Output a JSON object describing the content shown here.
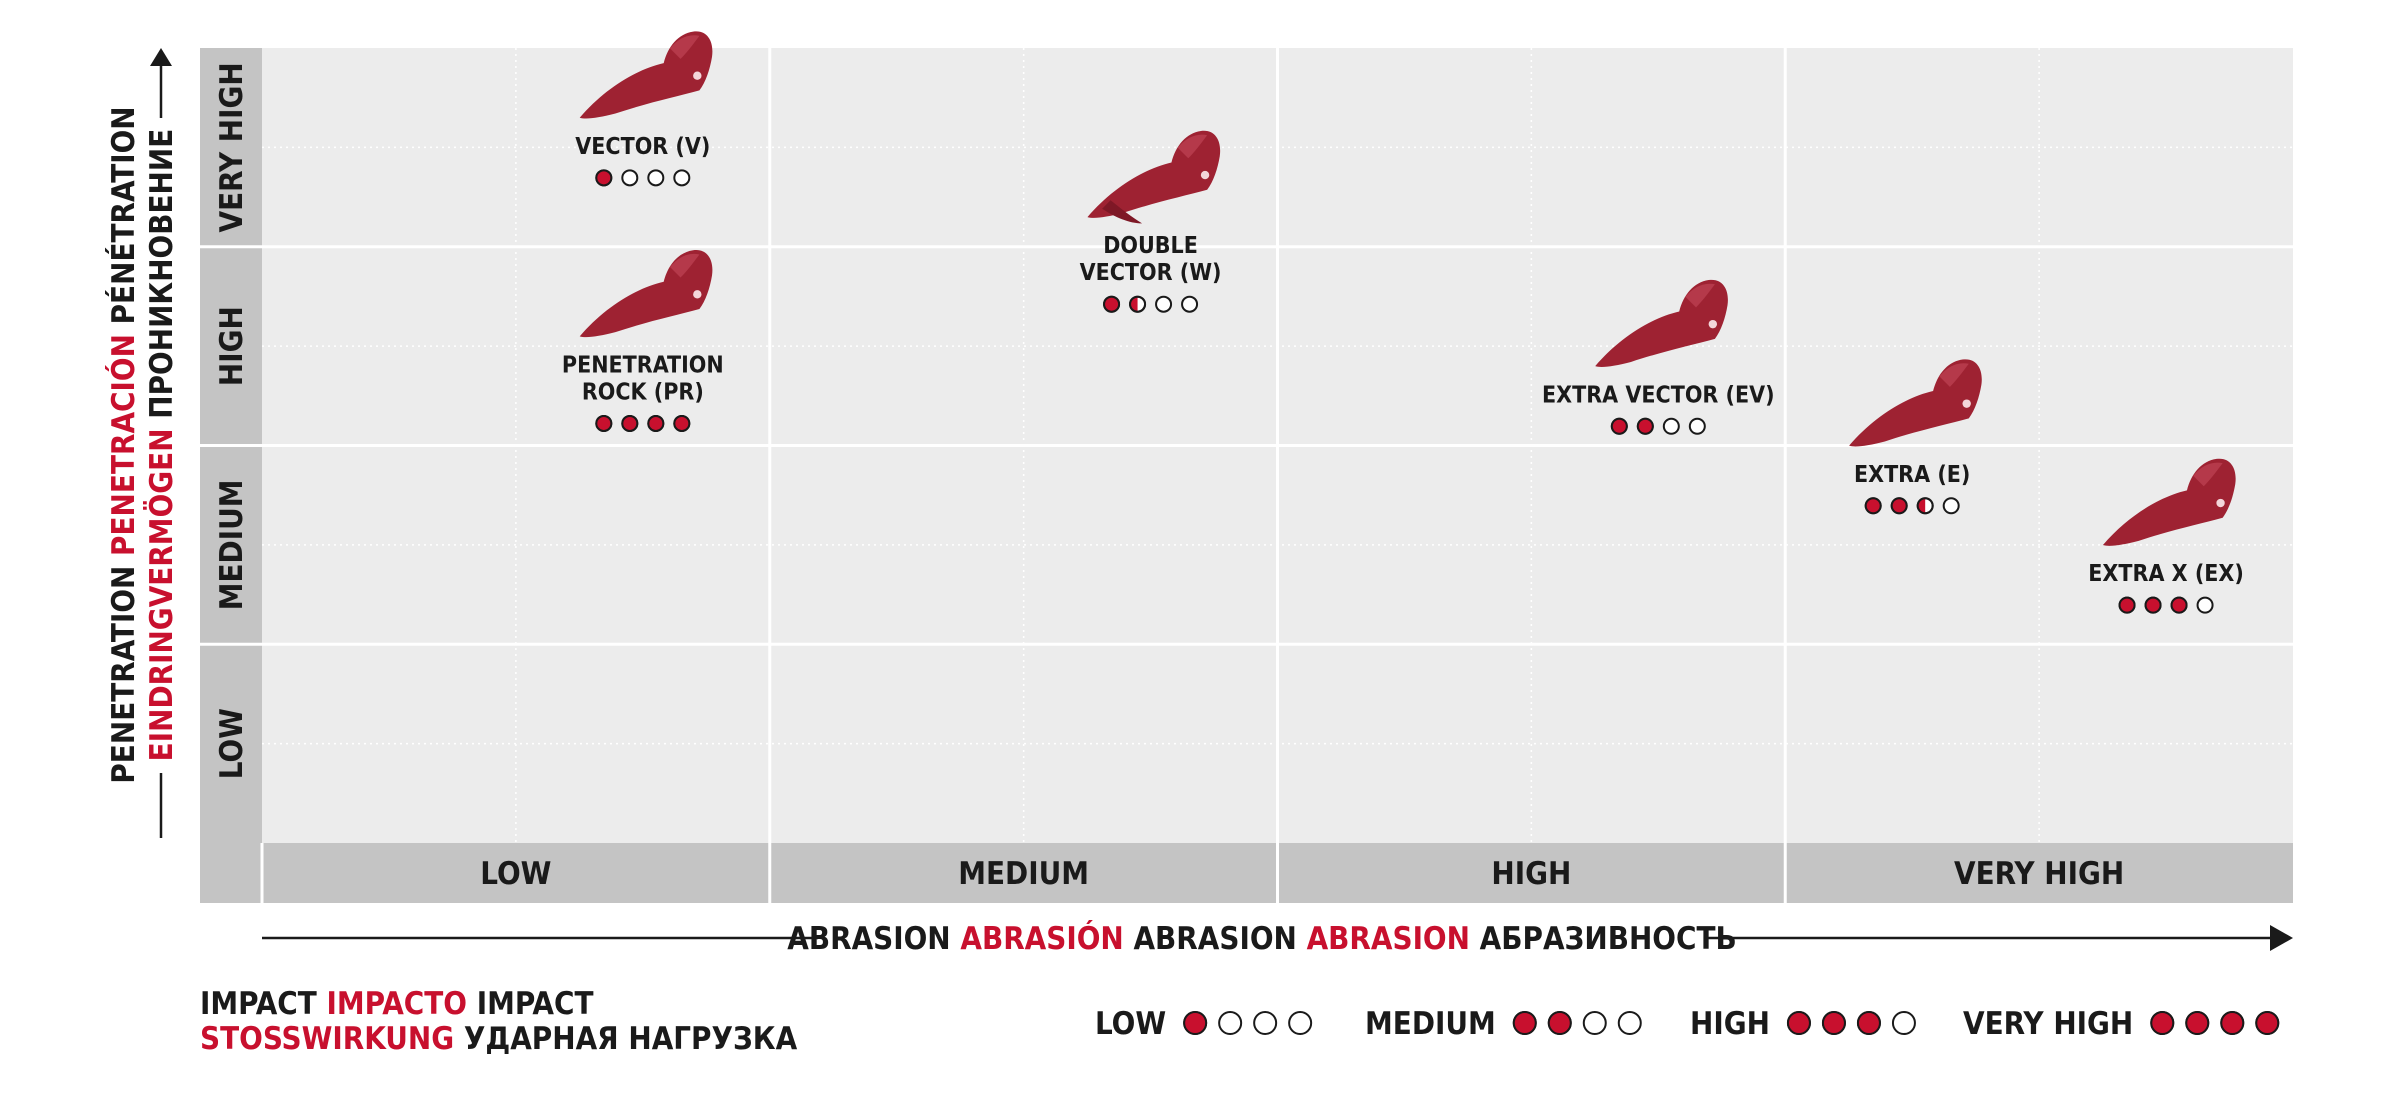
{
  "chart_data": {
    "type": "scatter",
    "y_axis": {
      "title_words": [
        {
          "text": "PENETRATION",
          "color": "black"
        },
        {
          "text": "PENETRACIÓN",
          "color": "red"
        },
        {
          "text": "PÉNÉTRATION",
          "color": "black"
        }
      ],
      "title_words_line2": [
        {
          "text": "EINDRINGVERMÖGEN",
          "color": "red"
        },
        {
          "text": "ПРОНИКНОВЕНИЕ",
          "color": "black"
        }
      ],
      "categories": [
        "LOW",
        "MEDIUM",
        "HIGH",
        "VERY HIGH"
      ]
    },
    "x_axis": {
      "title_words": [
        {
          "text": "ABRASION",
          "color": "black"
        },
        {
          "text": "ABRASIÓN",
          "color": "red"
        },
        {
          "text": "ABRASION",
          "color": "black"
        },
        {
          "text": "ABRASION",
          "color": "red"
        },
        {
          "text": "АБРАЗИВНОСТЬ",
          "color": "black"
        }
      ],
      "categories": [
        "LOW",
        "MEDIUM",
        "HIGH",
        "VERY HIGH"
      ]
    },
    "points": [
      {
        "label": "VECTOR (V)",
        "x": 0.75,
        "y": 3.85,
        "impact": 1
      },
      {
        "label": "PENETRATION ROCK (PR)",
        "x": 0.75,
        "y": 2.75,
        "impact": 4
      },
      {
        "label": "DOUBLE VECTOR (W)",
        "x": 1.75,
        "y": 3.35,
        "impact": 1.5
      },
      {
        "label": "EXTRA VECTOR (EV)",
        "x": 2.75,
        "y": 2.6,
        "impact": 2
      },
      {
        "label": "EXTRA (E)",
        "x": 3.25,
        "y": 2.2,
        "impact": 2.5
      },
      {
        "label": "EXTRA X (EX)",
        "x": 3.75,
        "y": 1.7,
        "impact": 3
      }
    ],
    "impact_legend": {
      "title_words": [
        {
          "text": "IMPACT",
          "color": "black"
        },
        {
          "text": "IMPACTO",
          "color": "red"
        },
        {
          "text": "IMPACT",
          "color": "black"
        }
      ],
      "title_words_line2": [
        {
          "text": "STOSSWIRKUNG",
          "color": "red"
        },
        {
          "text": "УДАРНАЯ НАГРУЗКА",
          "color": "black"
        }
      ],
      "levels": [
        {
          "label": "LOW",
          "filled": 1
        },
        {
          "label": "MEDIUM",
          "filled": 2
        },
        {
          "label": "HIGH",
          "filled": 3
        },
        {
          "label": "VERY HIGH",
          "filled": 4
        }
      ]
    },
    "colors": {
      "accent": "#c8102e",
      "text": "#1a1a1a",
      "plot_bg": "#ececec",
      "axis_band": "#c4c4c4",
      "grid": "#ffffff",
      "tooth": "#9e2232"
    },
    "icon": "tooth-icon",
    "grid": true
  }
}
